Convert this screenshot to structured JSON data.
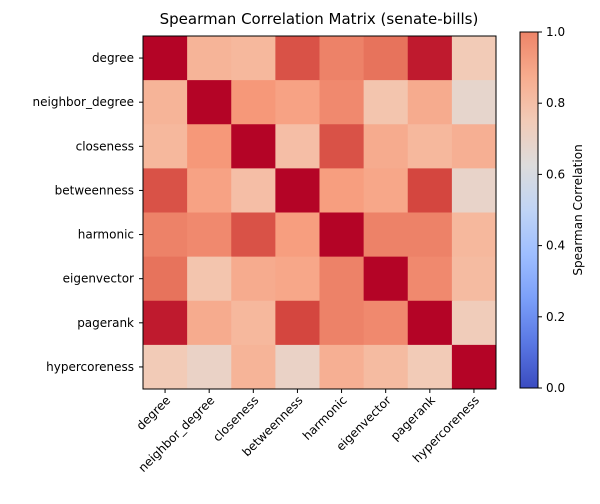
{
  "chart_data": {
    "type": "heatmap",
    "title": "Spearman Correlation Matrix (senate-bills)",
    "row_labels": [
      "degree",
      "neighbor_degree",
      "closeness",
      "betweenness",
      "harmonic",
      "eigenvector",
      "pagerank",
      "hypercoreness"
    ],
    "col_labels": [
      "degree",
      "neighbor_degree",
      "closeness",
      "betweenness",
      "harmonic",
      "eigenvector",
      "pagerank",
      "hypercoreness"
    ],
    "values": [
      [
        1.0,
        0.82,
        0.81,
        0.96,
        0.91,
        0.93,
        0.99,
        0.75
      ],
      [
        0.82,
        1.0,
        0.88,
        0.86,
        0.9,
        0.77,
        0.84,
        0.68
      ],
      [
        0.81,
        0.88,
        1.0,
        0.79,
        0.96,
        0.84,
        0.81,
        0.83
      ],
      [
        0.96,
        0.86,
        0.79,
        1.0,
        0.87,
        0.85,
        0.97,
        0.69
      ],
      [
        0.91,
        0.9,
        0.96,
        0.87,
        1.0,
        0.91,
        0.91,
        0.81
      ],
      [
        0.93,
        0.77,
        0.84,
        0.85,
        0.91,
        1.0,
        0.9,
        0.8
      ],
      [
        0.99,
        0.84,
        0.81,
        0.97,
        0.91,
        0.9,
        1.0,
        0.74
      ],
      [
        0.75,
        0.7,
        0.82,
        0.7,
        0.83,
        0.8,
        0.75,
        1.0
      ]
    ],
    "colorbar": {
      "label": "Spearman Correlation",
      "range": [
        0.0,
        1.0
      ],
      "ticks": [
        "0.0",
        "0.2",
        "0.4",
        "0.6",
        "0.8",
        "1.0"
      ],
      "colormap": "coolwarm"
    }
  }
}
